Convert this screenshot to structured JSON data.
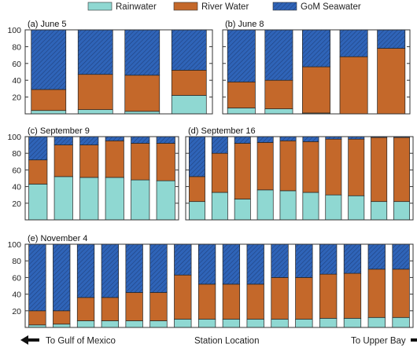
{
  "legend": {
    "items": [
      {
        "name": "Rainwater",
        "color_key": "rainwater"
      },
      {
        "name": "River Water",
        "color_key": "river"
      },
      {
        "name": "GoM Seawater",
        "color_key": "seawater"
      }
    ]
  },
  "colors": {
    "rainwater": "#8fd8d2",
    "river": "#c4682a",
    "seawater": "#2f64b8",
    "hatch": "#1e3f7a",
    "frame": "#333333"
  },
  "footer": {
    "left_label": "To Gulf of Mexico",
    "center_label": "Station Location",
    "right_label": "To Upper Bay"
  },
  "chart_data": [
    {
      "type": "bar",
      "stacked": true,
      "panel_label": "(a) June 5",
      "ylim": [
        0,
        100
      ],
      "yticks": [
        20,
        40,
        60,
        80,
        100
      ],
      "series": [
        {
          "name": "Rainwater",
          "values": [
            4,
            5,
            3,
            22
          ]
        },
        {
          "name": "River Water",
          "values": [
            25,
            42,
            43,
            30
          ]
        },
        {
          "name": "GoM Seawater",
          "values": [
            71,
            53,
            54,
            48
          ]
        }
      ]
    },
    {
      "type": "bar",
      "stacked": true,
      "panel_label": "(b) June 8",
      "ylim": [
        0,
        100
      ],
      "yticks": [
        20,
        40,
        60,
        80,
        100
      ],
      "series": [
        {
          "name": "Rainwater",
          "values": [
            7,
            6,
            1,
            0,
            0
          ]
        },
        {
          "name": "River Water",
          "values": [
            31,
            34,
            55,
            68,
            78
          ]
        },
        {
          "name": "GoM Seawater",
          "values": [
            62,
            60,
            44,
            32,
            22
          ]
        }
      ]
    },
    {
      "type": "bar",
      "stacked": true,
      "panel_label": "(c) September 9",
      "ylim": [
        0,
        100
      ],
      "yticks": [
        20,
        40,
        60,
        80,
        100
      ],
      "series": [
        {
          "name": "Rainwater",
          "values": [
            43,
            52,
            51,
            51,
            48,
            47
          ]
        },
        {
          "name": "River Water",
          "values": [
            29,
            38,
            39,
            44,
            44,
            45
          ]
        },
        {
          "name": "GoM Seawater",
          "values": [
            28,
            10,
            10,
            5,
            8,
            8
          ]
        }
      ]
    },
    {
      "type": "bar",
      "stacked": true,
      "panel_label": "(d) September 16",
      "ylim": [
        0,
        100
      ],
      "yticks": [
        20,
        40,
        60,
        80,
        100
      ],
      "series": [
        {
          "name": "Rainwater",
          "values": [
            22,
            33,
            25,
            36,
            35,
            33,
            30,
            29,
            22,
            22
          ]
        },
        {
          "name": "River Water",
          "values": [
            30,
            47,
            67,
            57,
            60,
            61,
            67,
            68,
            77,
            77
          ]
        },
        {
          "name": "GoM Seawater",
          "values": [
            48,
            20,
            8,
            7,
            5,
            6,
            3,
            3,
            1,
            1
          ]
        }
      ]
    },
    {
      "type": "bar",
      "stacked": true,
      "panel_label": "(e) November 4",
      "ylim": [
        0,
        100
      ],
      "yticks": [
        20,
        40,
        60,
        80,
        100
      ],
      "series": [
        {
          "name": "Rainwater",
          "values": [
            3,
            4,
            8,
            8,
            8,
            8,
            10,
            10,
            10,
            10,
            10,
            10,
            11,
            11,
            12,
            12
          ]
        },
        {
          "name": "River Water",
          "values": [
            17,
            16,
            28,
            28,
            34,
            34,
            53,
            42,
            42,
            42,
            50,
            50,
            53,
            54,
            58,
            58
          ]
        },
        {
          "name": "GoM Seawater",
          "values": [
            80,
            80,
            64,
            64,
            58,
            58,
            37,
            48,
            48,
            48,
            40,
            40,
            36,
            35,
            30,
            30
          ]
        }
      ]
    }
  ]
}
